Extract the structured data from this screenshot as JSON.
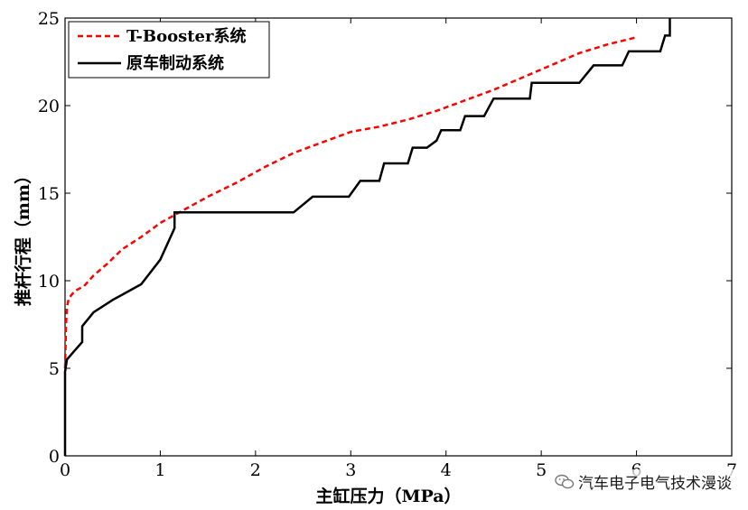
{
  "chart_data": {
    "type": "line",
    "xlabel": "主缸压力（MPa）",
    "ylabel": "推杆行程（mm）",
    "xlim": [
      0,
      7
    ],
    "ylim": [
      0,
      25
    ],
    "xticks": [
      "0",
      "1",
      "2",
      "3",
      "4",
      "5",
      "6",
      "7"
    ],
    "yticks": [
      "0",
      "5",
      "10",
      "15",
      "20",
      "25"
    ],
    "grid": false,
    "legend_position": "top-left",
    "series": [
      {
        "name": "T-Booster系统",
        "color": "#ff0000",
        "style": "dashed",
        "x": [
          0,
          0.01,
          0.02,
          0.04,
          0.1,
          0.2,
          0.3,
          0.45,
          0.6,
          0.8,
          1.0,
          1.2,
          1.5,
          1.8,
          2.1,
          2.4,
          2.7,
          3.0,
          3.3,
          3.6,
          3.9,
          4.2,
          4.5,
          4.8,
          5.1,
          5.4,
          5.7,
          6.0
        ],
        "y": [
          5,
          7.5,
          8.5,
          9.0,
          9.4,
          9.7,
          10.3,
          11.0,
          11.8,
          12.5,
          13.3,
          13.9,
          14.8,
          15.6,
          16.5,
          17.3,
          17.9,
          18.5,
          18.8,
          19.2,
          19.7,
          20.3,
          20.9,
          21.6,
          22.3,
          23.0,
          23.5,
          23.9
        ]
      },
      {
        "name": "原车制动系统",
        "color": "#000000",
        "style": "solid",
        "x": [
          0,
          0.0,
          0.02,
          0.1,
          0.18,
          0.18,
          0.3,
          0.5,
          0.8,
          1.0,
          1.15,
          1.15,
          1.2,
          2.4,
          2.6,
          2.98,
          3.1,
          3.3,
          3.35,
          3.6,
          3.65,
          3.8,
          3.9,
          3.95,
          4.15,
          4.2,
          4.4,
          4.5,
          4.88,
          4.9,
          5.4,
          5.55,
          5.85,
          5.92,
          6.25,
          6.3,
          6.35,
          6.35
        ],
        "y": [
          0,
          4.8,
          5.5,
          6.0,
          6.5,
          7.4,
          8.2,
          8.9,
          9.8,
          11.2,
          13.0,
          13.9,
          13.9,
          13.9,
          14.8,
          14.8,
          15.7,
          15.7,
          16.7,
          16.7,
          17.6,
          17.6,
          18.0,
          18.6,
          18.6,
          19.4,
          19.4,
          20.4,
          20.4,
          21.3,
          21.3,
          22.3,
          22.3,
          23.1,
          23.1,
          24.0,
          24.0,
          25.0
        ]
      }
    ]
  },
  "watermark": {
    "icon": "wechat-icon",
    "text": "汽车电子电气技术漫谈"
  }
}
